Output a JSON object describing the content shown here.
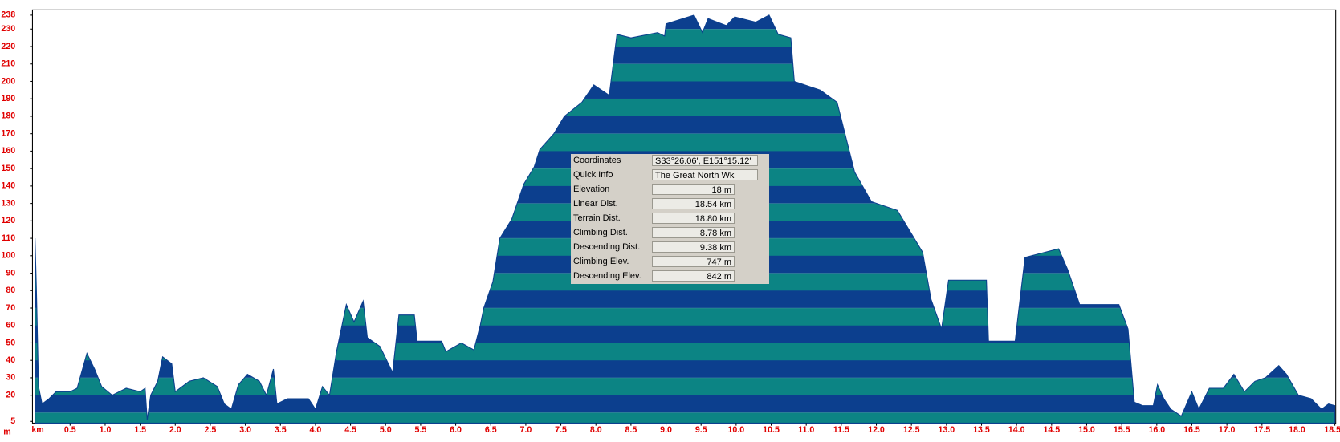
{
  "chart_data": {
    "type": "area",
    "x_label": "km",
    "y_label": "m",
    "x": [
      0,
      0.02,
      0.05,
      0.1,
      0.2,
      0.3,
      0.5,
      0.6,
      0.74,
      0.85,
      0.95,
      1.1,
      1.3,
      1.5,
      1.57,
      1.6,
      1.65,
      1.75,
      1.82,
      1.95,
      2.0,
      2.2,
      2.4,
      2.6,
      2.7,
      2.8,
      2.9,
      3.03,
      3.2,
      3.3,
      3.4,
      3.45,
      3.6,
      3.9,
      4.0,
      4.1,
      4.2,
      4.3,
      4.44,
      4.55,
      4.68,
      4.74,
      4.92,
      5.1,
      5.19,
      5.41,
      5.45,
      5.8,
      5.86,
      6.08,
      6.26,
      6.35,
      6.4,
      6.53,
      6.63,
      6.8,
      6.97,
      7.12,
      7.2,
      7.4,
      7.55,
      7.8,
      7.97,
      8.19,
      8.3,
      8.5,
      8.88,
      8.98,
      9.0,
      9.4,
      9.52,
      9.6,
      9.86,
      9.98,
      10.28,
      10.47,
      10.6,
      10.78,
      10.83,
      11.2,
      11.44,
      11.69,
      11.93,
      12.3,
      12.48,
      12.66,
      12.78,
      12.93,
      13.03,
      13.57,
      13.6,
      13.98,
      14.02,
      14.12,
      14.6,
      14.73,
      14.9,
      15.46,
      15.59,
      15.68,
      15.8,
      15.95,
      16.01,
      16.1,
      16.2,
      16.35,
      16.5,
      16.6,
      16.75,
      16.95,
      17.1,
      17.25,
      17.4,
      17.55,
      17.74,
      17.85,
      18.02,
      18.2,
      18.35,
      18.45,
      18.54
    ],
    "y": [
      110,
      80,
      25,
      15,
      18,
      22,
      22,
      24,
      44,
      35,
      25,
      20,
      24,
      22,
      24,
      6,
      20,
      28,
      42,
      38,
      22,
      28,
      30,
      25,
      15,
      12,
      26,
      32,
      28,
      20,
      35,
      15,
      18,
      18,
      12,
      25,
      20,
      45,
      72,
      62,
      74,
      53,
      48,
      33,
      66,
      66,
      51,
      51,
      45,
      50,
      46,
      60,
      70,
      85,
      110,
      121,
      141,
      151,
      161,
      170,
      180,
      188,
      198,
      192,
      227,
      225,
      228,
      226,
      233,
      238,
      228,
      236,
      232,
      237,
      234,
      238,
      227,
      225,
      200,
      195,
      188,
      148,
      131,
      126,
      114,
      102,
      75,
      58,
      86,
      86,
      51,
      51,
      65,
      99,
      104,
      92,
      72,
      72,
      58,
      16,
      14,
      14,
      26,
      18,
      12,
      8,
      22,
      12,
      24,
      24,
      32,
      22,
      28,
      30,
      37,
      32,
      20,
      18,
      12,
      15,
      14
    ],
    "xlim": [
      0,
      18.54
    ],
    "ylim": [
      4,
      241
    ],
    "xticks": [
      0.5,
      {
        "value": 1,
        "label": "1.0"
      },
      1.5,
      {
        "value": 2,
        "label": "2.0"
      },
      2.5,
      {
        "value": 3,
        "label": "3.0"
      },
      3.5,
      {
        "value": 4,
        "label": "4.0"
      },
      4.5,
      {
        "value": 5,
        "label": "5.0"
      },
      5.5,
      {
        "value": 6,
        "label": "6.0"
      },
      6.5,
      {
        "value": 7,
        "label": "7.0"
      },
      7.5,
      {
        "value": 8,
        "label": "8.0"
      },
      8.5,
      {
        "value": 9,
        "label": "9.0"
      },
      9.5,
      {
        "value": 10,
        "label": "10.0"
      },
      10.5,
      {
        "value": 11,
        "label": "11.0"
      },
      11.5,
      {
        "value": 12,
        "label": "12.0"
      },
      12.5,
      {
        "value": 13,
        "label": "13.0"
      },
      13.5,
      {
        "value": 14,
        "label": "14.0"
      },
      14.5,
      {
        "value": 15,
        "label": "15.0"
      },
      15.5,
      {
        "value": 16,
        "label": "16.0"
      },
      16.5,
      {
        "value": 17,
        "label": "17.0"
      },
      17.5,
      {
        "value": 18,
        "label": "18.0"
      },
      18.54
    ],
    "yticks": [
      5,
      20,
      30,
      40,
      50,
      60,
      70,
      80,
      90,
      100,
      110,
      120,
      130,
      140,
      150,
      160,
      170,
      180,
      190,
      200,
      210,
      220,
      230,
      238
    ],
    "colors": [
      "#0c3f8e",
      "#0c8484"
    ],
    "tick_color": "#e00000"
  },
  "info_panel": {
    "rows": [
      {
        "label": "Coordinates",
        "value": "S33°26.06', E151°15.12'"
      },
      {
        "label": "Quick Info",
        "value": "The Great North Wk"
      },
      {
        "label": "Elevation",
        "value": "18 m"
      },
      {
        "label": "Linear Dist.",
        "value": "18.54 km"
      },
      {
        "label": "Terrain Dist.",
        "value": "18.80 km"
      },
      {
        "label": "Climbing Dist.",
        "value": "8.78 km"
      },
      {
        "label": "Descending Dist.",
        "value": "9.38 km"
      },
      {
        "label": "Climbing Elev.",
        "value": "747 m"
      },
      {
        "label": "Descending Elev.",
        "value": "842 m"
      }
    ]
  }
}
